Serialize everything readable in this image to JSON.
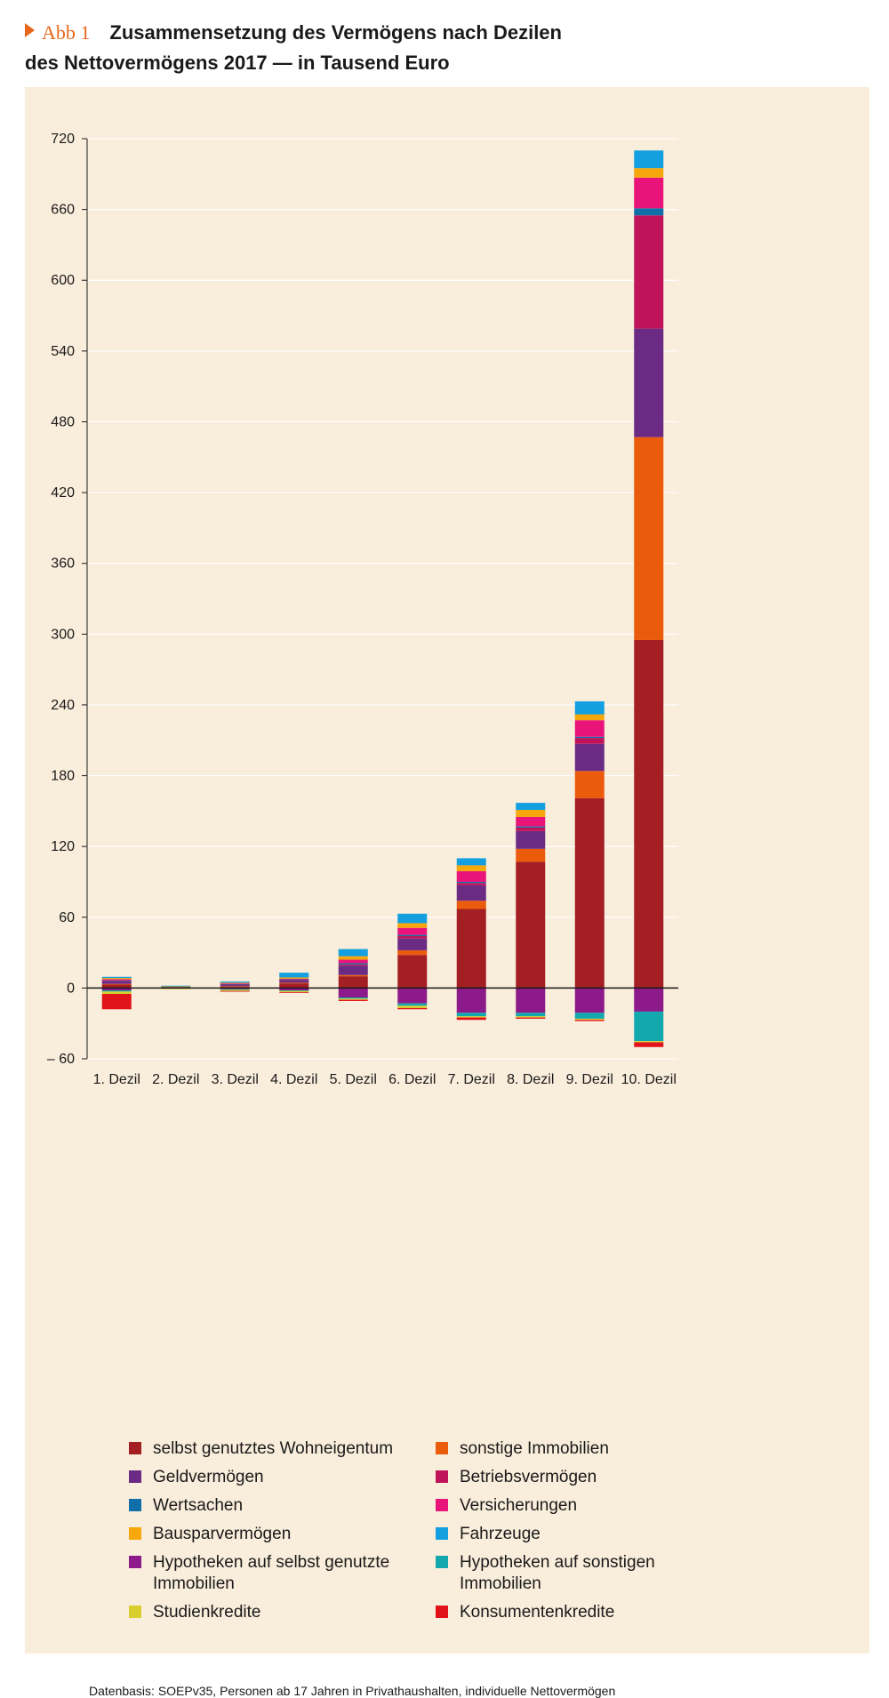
{
  "header": {
    "figure_label": "Abb 1",
    "title_line1": "Zusammensetzung des Vermögens nach Dezilen",
    "title_line2": "des Nettovermögens 2017 — in Tausend Euro"
  },
  "colors": {
    "accent": "#e8671c",
    "panel_background": "#f9eddb",
    "selbst_genutztes_wohneigentum": "#a31f23",
    "sonstige_immobilien": "#eb5b0c",
    "geldvermoegen": "#6b2a84",
    "betriebsvermoegen": "#c0145a",
    "wertsachen": "#0f6fa8",
    "versicherungen": "#e8147a",
    "bausparvermoegen": "#f5a70c",
    "fahrzeuge": "#139fe0",
    "hypotheken_selbst": "#8c1a8a",
    "hypotheken_sonstige": "#12a8ae",
    "studienkredite": "#d8cf2e",
    "konsumentenkredite": "#e2121a"
  },
  "chart_data": {
    "type": "bar",
    "stacked": true,
    "categories": [
      "1. Dezil",
      "2. Dezil",
      "3. Dezil",
      "4. Dezil",
      "5. Dezil",
      "6. Dezil",
      "7. Dezil",
      "8. Dezil",
      "9. Dezil",
      "10. Dezil"
    ],
    "ylim": [
      -60,
      720
    ],
    "yticks": [
      -60,
      0,
      60,
      120,
      180,
      240,
      300,
      360,
      420,
      480,
      540,
      600,
      660,
      720
    ],
    "ytick_labels": [
      "– 60",
      "0",
      "60",
      "120",
      "180",
      "240",
      "300",
      "360",
      "420",
      "480",
      "540",
      "600",
      "660",
      "720"
    ],
    "grid": true,
    "legend_position": "bottom",
    "series": [
      {
        "name": "selbst genutztes Wohneigentum",
        "color": "#a31f23",
        "values": [
          3,
          0.5,
          1,
          4,
          10,
          28,
          67,
          107,
          161,
          295
        ]
      },
      {
        "name": "sonstige Immobilien",
        "color": "#eb5b0c",
        "values": [
          0.5,
          0,
          0.5,
          0.5,
          1,
          4,
          7,
          11,
          23,
          172
        ]
      },
      {
        "name": "Geldvermögen",
        "color": "#6b2a84",
        "values": [
          2,
          0.5,
          1,
          2,
          8,
          10,
          13,
          15,
          23,
          92
        ]
      },
      {
        "name": "Betriebsvermögen",
        "color": "#c0145a",
        "values": [
          0.5,
          0,
          0.5,
          0.5,
          1,
          2,
          2,
          3,
          5,
          96
        ]
      },
      {
        "name": "Wertsachen",
        "color": "#0f6fa8",
        "values": [
          0.5,
          0,
          0.5,
          0.5,
          1,
          1,
          1,
          1,
          1,
          6
        ]
      },
      {
        "name": "Versicherungen",
        "color": "#e8147a",
        "values": [
          1,
          0,
          0.5,
          0.5,
          3,
          6,
          9,
          8,
          14,
          26
        ]
      },
      {
        "name": "Bausparvermögen",
        "color": "#f5a70c",
        "values": [
          1,
          0.5,
          0.5,
          1,
          3,
          4,
          5,
          6,
          5,
          8
        ]
      },
      {
        "name": "Fahrzeuge",
        "color": "#139fe0",
        "values": [
          1,
          0.5,
          1,
          4,
          6,
          8,
          6,
          6,
          11,
          15
        ]
      },
      {
        "name": "Hypotheken auf selbst genutzte Immobilien",
        "color": "#8c1a8a",
        "values": [
          -2,
          0,
          -1,
          -2,
          -8,
          -13,
          -21,
          -21,
          -21,
          -20
        ]
      },
      {
        "name": "Hypotheken auf sonstigen Immobilien",
        "color": "#12a8ae",
        "values": [
          -1,
          0,
          -0.5,
          -0.5,
          -1,
          -2,
          -3,
          -3,
          -5,
          -25
        ]
      },
      {
        "name": "Studienkredite",
        "color": "#d8cf2e",
        "values": [
          -2,
          -1,
          -1,
          -1,
          -1,
          -2,
          -1,
          -1,
          -1,
          -1
        ]
      },
      {
        "name": "Konsumentenkredite",
        "color": "#e2121a",
        "values": [
          -13,
          0,
          -0.5,
          -0.5,
          -1,
          -1,
          -2,
          -1,
          -1,
          -4
        ]
      }
    ]
  },
  "legend_layout_order": [
    0,
    1,
    2,
    3,
    4,
    5,
    6,
    7,
    8,
    9,
    10,
    11
  ],
  "source_note": "Datenbasis: SOEPv35, Personen ab 17 Jahren in Privathaushalten, individuelle Nettovermögen"
}
